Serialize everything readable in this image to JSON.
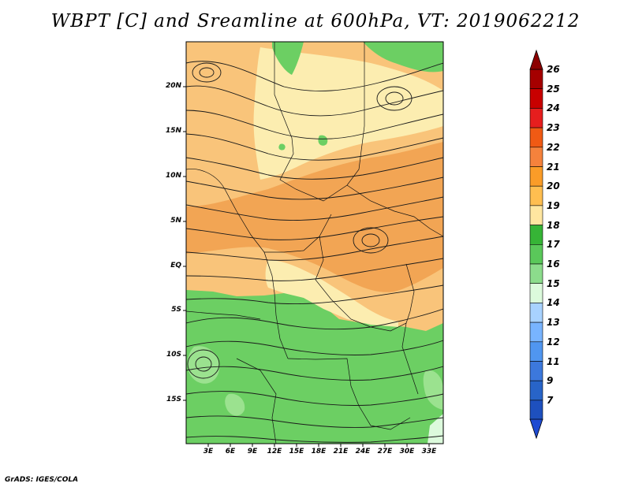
{
  "title": "WBPT [C] and Sreamline at 600hPa, VT: 2019062212",
  "credit": "GrADS: IGES/COLA",
  "lat_ticks": [
    "20N",
    "15N",
    "10N",
    "5N",
    "EQ",
    "5S",
    "10S",
    "15S"
  ],
  "lon_ticks": [
    "3E",
    "6E",
    "9E",
    "12E",
    "15E",
    "18E",
    "21E",
    "24E",
    "27E",
    "30E",
    "33E"
  ],
  "colorbar": {
    "labels": [
      "26",
      "25",
      "24",
      "23",
      "22",
      "21",
      "20",
      "19",
      "18",
      "17",
      "16",
      "15",
      "14",
      "13",
      "12",
      "11",
      "9",
      "7"
    ],
    "colors": [
      "#a50000",
      "#c80000",
      "#e61e1e",
      "#f05a14",
      "#f5823c",
      "#fa9c28",
      "#ffbe50",
      "#ffe6a0",
      "#36b436",
      "#5ac85a",
      "#8cdc8c",
      "#dcfadc",
      "#a8d2ff",
      "#78b4ff",
      "#5096f0",
      "#3c78dc",
      "#2864c8",
      "#1e50be"
    ],
    "top_arrow_color": "#8c0000",
    "bottom_arrow_color": "#1e4bd2"
  },
  "map_colors": {
    "green": "#6ccf63",
    "light_green": "#9be28f",
    "pale_yellow": "#fcedb0",
    "orange_light": "#f9c47a",
    "orange": "#f2a554"
  }
}
